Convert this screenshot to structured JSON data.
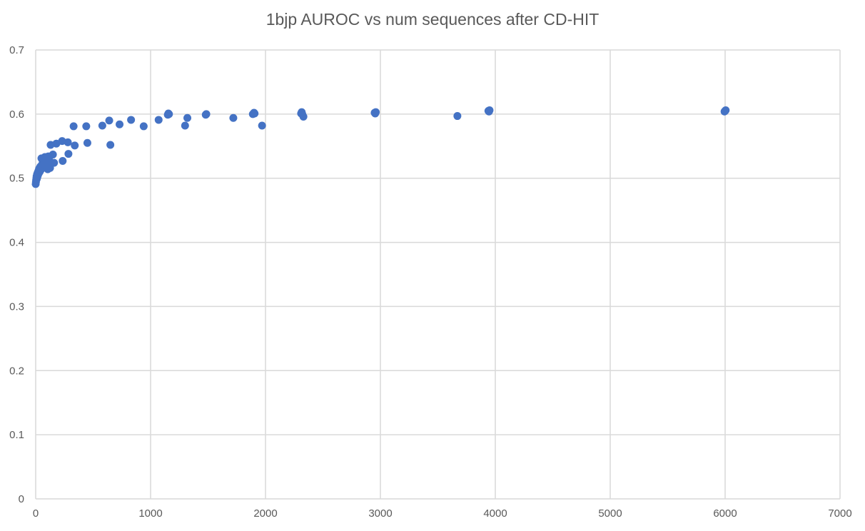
{
  "chart_data": {
    "type": "scatter",
    "title": "1bjp AUROC vs num sequences after CD-HIT",
    "xlabel": "",
    "ylabel": "",
    "xlim": [
      0,
      7000
    ],
    "ylim": [
      0,
      0.7
    ],
    "x_ticks": [
      0,
      1000,
      2000,
      3000,
      4000,
      5000,
      6000,
      7000
    ],
    "y_ticks": [
      0,
      0.1,
      0.2,
      0.3,
      0.4,
      0.5,
      0.6,
      0.7
    ],
    "x_tick_labels": [
      "0",
      "1000",
      "2000",
      "3000",
      "4000",
      "5000",
      "6000",
      "7000"
    ],
    "y_tick_labels": [
      "0",
      "0.1",
      "0.2",
      "0.3",
      "0.4",
      "0.5",
      "0.6",
      "0.7"
    ],
    "grid": true,
    "legend": "none",
    "point_color": "#4472c4",
    "series": [
      {
        "points": [
          [
            0,
            0.491
          ],
          [
            2,
            0.494
          ],
          [
            4,
            0.497
          ],
          [
            6,
            0.5
          ],
          [
            8,
            0.503
          ],
          [
            10,
            0.499
          ],
          [
            12,
            0.506
          ],
          [
            15,
            0.502
          ],
          [
            18,
            0.509
          ],
          [
            20,
            0.505
          ],
          [
            25,
            0.512
          ],
          [
            28,
            0.508
          ],
          [
            30,
            0.515
          ],
          [
            35,
            0.51
          ],
          [
            40,
            0.518
          ],
          [
            45,
            0.513
          ],
          [
            50,
            0.52
          ],
          [
            55,
            0.516
          ],
          [
            60,
            0.523
          ],
          [
            65,
            0.518
          ],
          [
            70,
            0.526
          ],
          [
            75,
            0.521
          ],
          [
            80,
            0.529
          ],
          [
            85,
            0.524
          ],
          [
            90,
            0.532
          ],
          [
            95,
            0.527
          ],
          [
            100,
            0.519
          ],
          [
            105,
            0.514
          ],
          [
            110,
            0.534
          ],
          [
            115,
            0.53
          ],
          [
            120,
            0.524
          ],
          [
            125,
            0.516
          ],
          [
            50,
            0.531
          ],
          [
            60,
            0.528
          ],
          [
            70,
            0.522
          ],
          [
            80,
            0.533
          ],
          [
            130,
            0.552
          ],
          [
            150,
            0.537
          ],
          [
            160,
            0.524
          ],
          [
            180,
            0.554
          ],
          [
            230,
            0.558
          ],
          [
            235,
            0.527
          ],
          [
            280,
            0.556
          ],
          [
            285,
            0.538
          ],
          [
            330,
            0.581
          ],
          [
            340,
            0.551
          ],
          [
            440,
            0.581
          ],
          [
            450,
            0.555
          ],
          [
            580,
            0.582
          ],
          [
            640,
            0.59
          ],
          [
            650,
            0.552
          ],
          [
            730,
            0.584
          ],
          [
            830,
            0.591
          ],
          [
            940,
            0.581
          ],
          [
            1070,
            0.591
          ],
          [
            1150,
            0.599
          ],
          [
            1155,
            0.601
          ],
          [
            1160,
            0.6
          ],
          [
            1300,
            0.582
          ],
          [
            1320,
            0.594
          ],
          [
            1480,
            0.599
          ],
          [
            1485,
            0.6
          ],
          [
            1720,
            0.594
          ],
          [
            1890,
            0.6
          ],
          [
            1900,
            0.602
          ],
          [
            1905,
            0.601
          ],
          [
            1970,
            0.582
          ],
          [
            2310,
            0.601
          ],
          [
            2315,
            0.603
          ],
          [
            2320,
            0.6
          ],
          [
            2330,
            0.596
          ],
          [
            2950,
            0.602
          ],
          [
            2960,
            0.603
          ],
          [
            2955,
            0.601
          ],
          [
            3670,
            0.597
          ],
          [
            3940,
            0.605
          ],
          [
            3950,
            0.606
          ],
          [
            3945,
            0.604
          ],
          [
            6000,
            0.605
          ],
          [
            6005,
            0.606
          ],
          [
            5995,
            0.604
          ]
        ]
      }
    ]
  }
}
